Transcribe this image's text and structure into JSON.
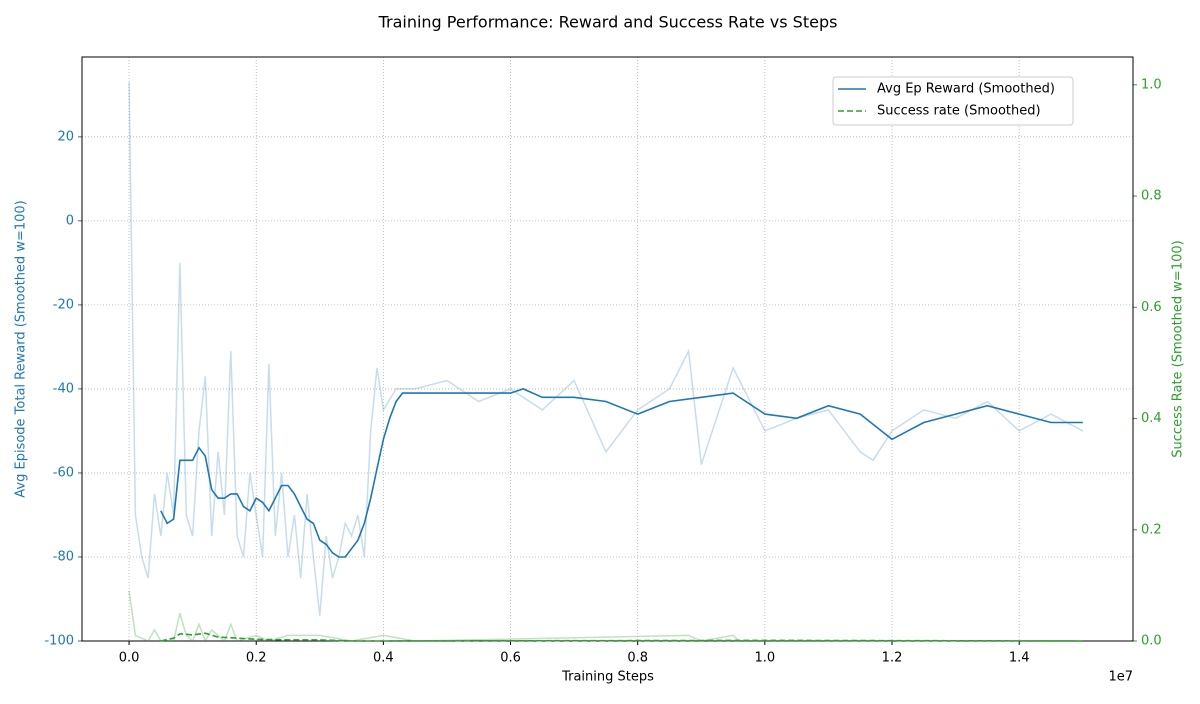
{
  "chart_data": {
    "type": "line",
    "title": "Training Performance: Reward and Success Rate vs Steps",
    "x_label": "Training Steps",
    "x_offset_label": "1e7",
    "y_label": "Avg Episode Total Reward (Smoothed w=100)",
    "y2_label": "Success Rate (Smoothed w=100)",
    "xlim": [
      -740000,
      15790000
    ],
    "xticks": [
      {
        "value": 0,
        "label": "0.0"
      },
      {
        "value": 2000000,
        "label": "0.2"
      },
      {
        "value": 4000000,
        "label": "0.4"
      },
      {
        "value": 6000000,
        "label": "0.6"
      },
      {
        "value": 8000000,
        "label": "0.8"
      },
      {
        "value": 10000000,
        "label": "1.0"
      },
      {
        "value": 12000000,
        "label": "1.2"
      },
      {
        "value": 14000000,
        "label": "1.4"
      }
    ],
    "ylim": [
      -100,
      39
    ],
    "yticks": [
      -100,
      -80,
      -60,
      -40,
      -20,
      0,
      20
    ],
    "y2lim": [
      0,
      1.05
    ],
    "y2ticks": [
      {
        "value": 0,
        "label": "0.0"
      },
      {
        "value": 0.2,
        "label": "0.2"
      },
      {
        "value": 0.4,
        "label": "0.4"
      },
      {
        "value": 0.6,
        "label": "0.6"
      },
      {
        "value": 0.8,
        "label": "0.8"
      },
      {
        "value": 1,
        "label": "1.0"
      }
    ],
    "grid": true,
    "legend": "upper right",
    "series": [
      {
        "color": "#1f77b4",
        "opacity": 0.25,
        "x": [
          0,
          100000,
          200000,
          300000,
          400000,
          500000,
          600000,
          700000,
          800000,
          900000,
          1000000,
          1100000,
          1200000,
          1300000,
          1400000,
          1500000,
          1600000,
          1700000,
          1800000,
          1900000,
          2000000,
          2100000,
          2200000,
          2300000,
          2400000,
          2500000,
          2600000,
          2700000,
          2800000,
          2900000,
          3000000,
          3100000,
          3200000,
          3300000,
          3400000,
          3500000,
          3600000,
          3700000,
          3800000,
          3900000,
          4000000,
          4200000,
          4500000,
          5000000,
          5500000,
          6000000,
          6500000,
          7000000,
          7500000,
          8000000,
          8500000,
          8800000,
          9000000,
          9500000,
          10000000,
          10500000,
          11000000,
          11500000,
          11700000,
          12000000,
          12500000,
          13000000,
          13500000,
          14000000,
          14500000,
          15000000
        ],
        "values": [
          33,
          -70,
          -80,
          -85,
          -65,
          -75,
          -60,
          -70,
          -10,
          -70,
          -75,
          -50,
          -37,
          -75,
          -55,
          -70,
          -31,
          -75,
          -80,
          -60,
          -70,
          -80,
          -34,
          -75,
          -60,
          -80,
          -70,
          -85,
          -65,
          -80,
          -94,
          -75,
          -85,
          -80,
          -72,
          -75,
          -70,
          -80,
          -50,
          -35,
          -45,
          -40,
          -40,
          -38,
          -43,
          -40,
          -45,
          -38,
          -55,
          -45,
          -40,
          -31,
          -58,
          -35,
          -50,
          -47,
          -45,
          -55,
          -57,
          -50,
          -45,
          -47,
          -43,
          -50,
          -46,
          -50
        ]
      },
      {
        "name": "Avg Ep Reward (Smoothed)",
        "color": "#1f77b4",
        "x": [
          500000,
          600000,
          700000,
          800000,
          900000,
          1000000,
          1100000,
          1200000,
          1300000,
          1400000,
          1500000,
          1600000,
          1700000,
          1800000,
          1900000,
          2000000,
          2100000,
          2200000,
          2300000,
          2400000,
          2500000,
          2600000,
          2700000,
          2800000,
          2900000,
          3000000,
          3100000,
          3200000,
          3300000,
          3400000,
          3500000,
          3600000,
          3700000,
          3800000,
          3900000,
          4000000,
          4100000,
          4200000,
          4300000,
          4400000,
          4500000,
          4600000,
          5000000,
          5500000,
          6000000,
          6200000,
          6500000,
          7000000,
          7500000,
          8000000,
          8500000,
          9000000,
          9500000,
          10000000,
          10500000,
          11000000,
          11500000,
          12000000,
          12500000,
          13000000,
          13500000,
          14000000,
          14500000,
          15000000
        ],
        "values": [
          -69,
          -72,
          -71,
          -57,
          -57,
          -57,
          -54,
          -56,
          -64,
          -66,
          -66,
          -65,
          -65,
          -68,
          -69,
          -66,
          -67,
          -69,
          -66,
          -63,
          -63,
          -65,
          -68,
          -71,
          -72,
          -76,
          -77,
          -79,
          -80,
          -80,
          -78,
          -76,
          -72,
          -66,
          -59,
          -52,
          -47,
          -43,
          -41,
          -41,
          -41,
          -41,
          -41,
          -41,
          -41,
          -40,
          -42,
          -42,
          -43,
          -46,
          -43,
          -42,
          -41,
          -46,
          -47,
          -44,
          -46,
          -52,
          -48,
          -46,
          -44,
          -46,
          -48,
          -48
        ]
      },
      {
        "color": "#2ca02c",
        "opacity": 0.3,
        "axis": "y2",
        "x": [
          0,
          100000,
          300000,
          400000,
          500000,
          700000,
          800000,
          900000,
          1000000,
          1100000,
          1200000,
          1300000,
          1500000,
          1600000,
          1700000,
          2000000,
          2200000,
          2500000,
          3000000,
          3500000,
          4000000,
          4500000,
          8800000,
          9000000,
          9500000,
          9600000,
          15000000
        ],
        "values": [
          0.09,
          0.01,
          0,
          0.02,
          0,
          0,
          0.05,
          0.01,
          0,
          0.03,
          0,
          0.02,
          0,
          0.03,
          0,
          0.01,
          0,
          0.01,
          0.01,
          0,
          0.01,
          0,
          0.01,
          0,
          0.01,
          0,
          0
        ]
      },
      {
        "name": "Success rate (Smoothed)",
        "color": "#2ca02c",
        "linestyle": "dashed",
        "axis": "y2",
        "x": [
          500000,
          700000,
          800000,
          1000000,
          1200000,
          1400000,
          1600000,
          2000000,
          2500000,
          3000000,
          3500000,
          4000000,
          10000000,
          15000000
        ],
        "values": [
          0,
          0.005,
          0.013,
          0.011,
          0.014,
          0.007,
          0.006,
          0.003,
          0.002,
          0.002,
          0,
          0,
          0.001,
          0
        ]
      }
    ]
  }
}
